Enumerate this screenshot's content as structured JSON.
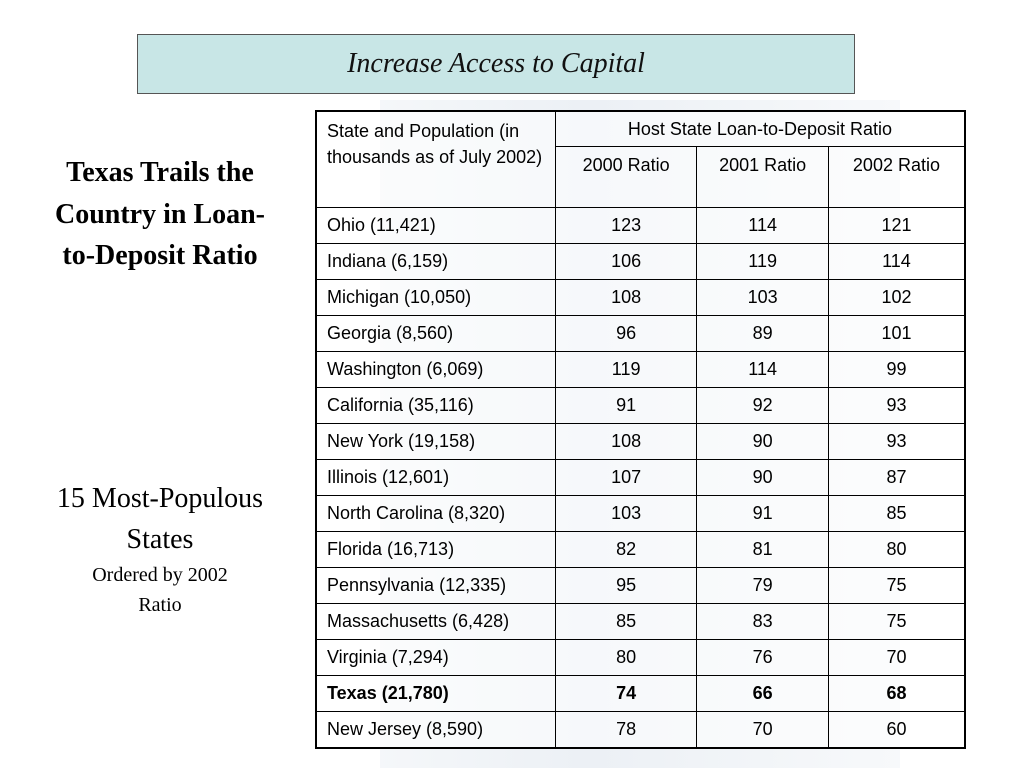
{
  "title": "Increase Access to Capital",
  "side": {
    "heading": "Texas Trails the Country in Loan-to-Deposit Ratio",
    "subheading": "15 Most-Populous States",
    "note": "Ordered by 2002 Ratio"
  },
  "table": {
    "corner": "State and Population (in thousands as of July 2002)",
    "group": "Host State Loan-to-Deposit Ratio",
    "columns": [
      "2000 Ratio",
      "2001 Ratio",
      "2002 Ratio"
    ],
    "rows": [
      {
        "cells": [
          "Ohio (11,421)",
          123,
          114,
          121
        ]
      },
      {
        "cells": [
          "Indiana (6,159)",
          106,
          119,
          114
        ]
      },
      {
        "cells": [
          "Michigan (10,050)",
          108,
          103,
          102
        ]
      },
      {
        "cells": [
          "Georgia (8,560)",
          96,
          89,
          101
        ]
      },
      {
        "cells": [
          "Washington (6,069)",
          119,
          114,
          99
        ]
      },
      {
        "cells": [
          "California (35,116)",
          91,
          92,
          93
        ]
      },
      {
        "cells": [
          "New York (19,158)",
          108,
          90,
          93
        ]
      },
      {
        "cells": [
          "Illinois (12,601)",
          107,
          90,
          87
        ]
      },
      {
        "cells": [
          "North Carolina (8,320)",
          103,
          91,
          85
        ]
      },
      {
        "cells": [
          "Florida (16,713)",
          82,
          81,
          80
        ]
      },
      {
        "cells": [
          "Pennsylvania (12,335)",
          95,
          79,
          75
        ]
      },
      {
        "cells": [
          "Massachusetts (6,428)",
          85,
          83,
          75
        ]
      },
      {
        "cells": [
          "Virginia (7,294)",
          80,
          76,
          70
        ]
      },
      {
        "cells": [
          "Texas (21,780)",
          74,
          66,
          68
        ],
        "bold": true
      },
      {
        "cells": [
          "New Jersey (8,590)",
          78,
          70,
          60
        ]
      }
    ]
  }
}
